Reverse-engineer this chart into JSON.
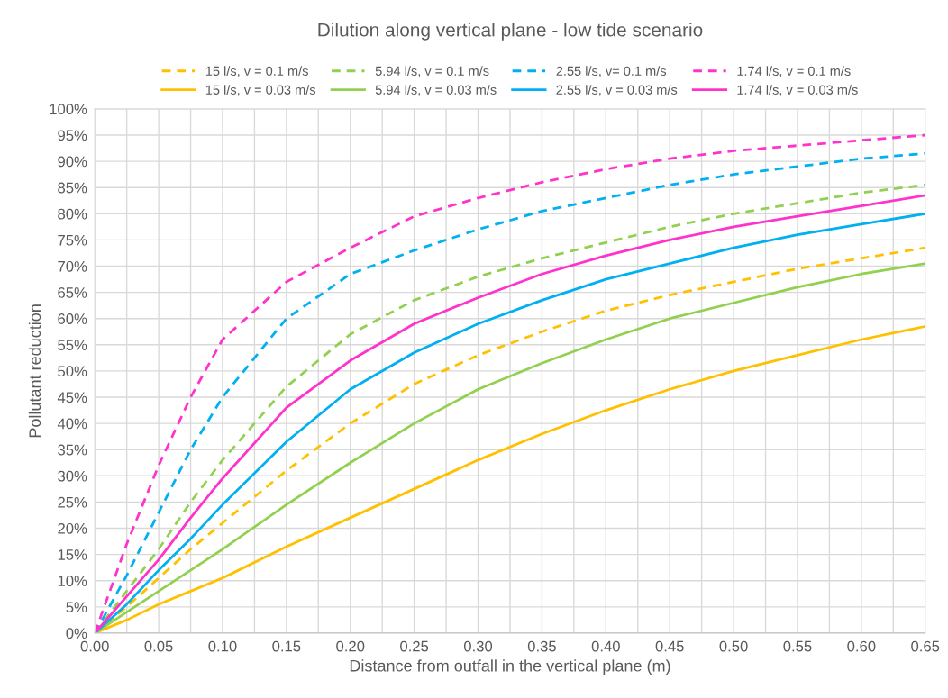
{
  "chart_data": {
    "type": "line",
    "title": "Dilution along vertical plane - low tide scenario",
    "xlabel": "Distance from outfall in the vertical plane (m)",
    "ylabel": "Pollutant reduction",
    "x": [
      0,
      0.025,
      0.05,
      0.075,
      0.1,
      0.15,
      0.2,
      0.25,
      0.3,
      0.35,
      0.4,
      0.45,
      0.5,
      0.55,
      0.6,
      0.65
    ],
    "series": [
      {
        "name": "15 l/s, v = 0.1 m/s",
        "color": "#ffc000",
        "line_style": "dashed",
        "values": [
          0,
          5,
          10.5,
          16,
          21,
          31,
          40,
          47.5,
          53,
          57.5,
          61.5,
          64.5,
          67,
          69.5,
          71.5,
          73.5
        ]
      },
      {
        "name": "5.94 l/s, v = 0.1 m/s",
        "color": "#92d050",
        "line_style": "dashed",
        "values": [
          0,
          8,
          16,
          25,
          33,
          47,
          57,
          63.5,
          68,
          71.5,
          74.5,
          77.5,
          80,
          82,
          84,
          85.5
        ]
      },
      {
        "name": "2.55 l/s, v= 0.1 m/s",
        "color": "#00b0f0",
        "line_style": "dashed",
        "values": [
          0,
          11,
          23,
          35,
          45,
          60,
          68.5,
          73,
          77,
          80.5,
          83,
          85.5,
          87.5,
          89,
          90.5,
          91.5
        ]
      },
      {
        "name": "1.74 l/s, v = 0.1 m/s",
        "color": "#ff33cc",
        "line_style": "dashed",
        "values": [
          0,
          17,
          32,
          45,
          56,
          67,
          73.5,
          79.5,
          83,
          86,
          88.5,
          90.5,
          92,
          93,
          94,
          95
        ]
      },
      {
        "name": "15 l/s, v = 0.03 m/s",
        "color": "#ffc000",
        "line_style": "solid",
        "values": [
          0,
          2.5,
          5.5,
          8,
          10.5,
          16.5,
          22,
          27.5,
          33,
          38,
          42.5,
          46.5,
          50,
          53,
          56,
          58.5
        ]
      },
      {
        "name": "5.94 l/s, v = 0.03 m/s",
        "color": "#92d050",
        "line_style": "solid",
        "values": [
          0,
          4,
          8,
          12,
          16,
          24.5,
          32.5,
          40,
          46.5,
          51.5,
          56,
          60,
          63,
          66,
          68.5,
          70.5
        ]
      },
      {
        "name": "2.55 l/s, v = 0.03 m/s",
        "color": "#00b0f0",
        "line_style": "solid",
        "values": [
          0,
          5.5,
          12,
          18,
          24.5,
          36.5,
          46.5,
          53.5,
          59,
          63.5,
          67.5,
          70.5,
          73.5,
          76,
          78,
          80
        ]
      },
      {
        "name": "1.74 l/s, v = 0.03 m/s",
        "color": "#ff33cc",
        "line_style": "solid",
        "values": [
          0,
          7,
          14,
          22,
          29.5,
          43,
          52,
          59,
          64,
          68.5,
          72,
          75,
          77.5,
          79.5,
          81.5,
          83.5
        ]
      }
    ],
    "xlim": [
      0,
      0.65
    ],
    "xticks": [
      {
        "value": 0,
        "label": "0.00"
      },
      {
        "value": 0.025,
        "label": null
      },
      {
        "value": 0.05,
        "label": "0.05"
      },
      {
        "value": 0.075,
        "label": null
      },
      {
        "value": 0.1,
        "label": "0.10"
      },
      {
        "value": 0.125,
        "label": null
      },
      {
        "value": 0.15,
        "label": "0.15"
      },
      {
        "value": 0.175,
        "label": null
      },
      {
        "value": 0.2,
        "label": "0.20"
      },
      {
        "value": 0.225,
        "label": null
      },
      {
        "value": 0.25,
        "label": "0.25"
      },
      {
        "value": 0.275,
        "label": null
      },
      {
        "value": 0.3,
        "label": "0.30"
      },
      {
        "value": 0.325,
        "label": null
      },
      {
        "value": 0.35,
        "label": "0.35"
      },
      {
        "value": 0.375,
        "label": null
      },
      {
        "value": 0.4,
        "label": "0.40"
      },
      {
        "value": 0.425,
        "label": null
      },
      {
        "value": 0.45,
        "label": "0.45"
      },
      {
        "value": 0.475,
        "label": null
      },
      {
        "value": 0.5,
        "label": "0.50"
      },
      {
        "value": 0.525,
        "label": null
      },
      {
        "value": 0.55,
        "label": "0.55"
      },
      {
        "value": 0.575,
        "label": null
      },
      {
        "value": 0.6,
        "label": "0.60"
      },
      {
        "value": 0.625,
        "label": null
      },
      {
        "value": 0.65,
        "label": "0.65"
      }
    ],
    "ylim": [
      0,
      100
    ],
    "yticks": [
      {
        "value": 0,
        "label": "0%"
      },
      {
        "value": 5,
        "label": "5%"
      },
      {
        "value": 10,
        "label": "10%"
      },
      {
        "value": 15,
        "label": "15%"
      },
      {
        "value": 20,
        "label": "20%"
      },
      {
        "value": 25,
        "label": "25%"
      },
      {
        "value": 30,
        "label": "30%"
      },
      {
        "value": 35,
        "label": "35%"
      },
      {
        "value": 40,
        "label": "40%"
      },
      {
        "value": 45,
        "label": "45%"
      },
      {
        "value": 50,
        "label": "50%"
      },
      {
        "value": 55,
        "label": "55%"
      },
      {
        "value": 60,
        "label": "60%"
      },
      {
        "value": 65,
        "label": "65%"
      },
      {
        "value": 70,
        "label": "70%"
      },
      {
        "value": 75,
        "label": "75%"
      },
      {
        "value": 80,
        "label": "80%"
      },
      {
        "value": 85,
        "label": "85%"
      },
      {
        "value": 90,
        "label": "90%"
      },
      {
        "value": 95,
        "label": "95%"
      },
      {
        "value": 100,
        "label": "100%"
      }
    ],
    "grid": true,
    "legend": "top",
    "marker": "none"
  }
}
